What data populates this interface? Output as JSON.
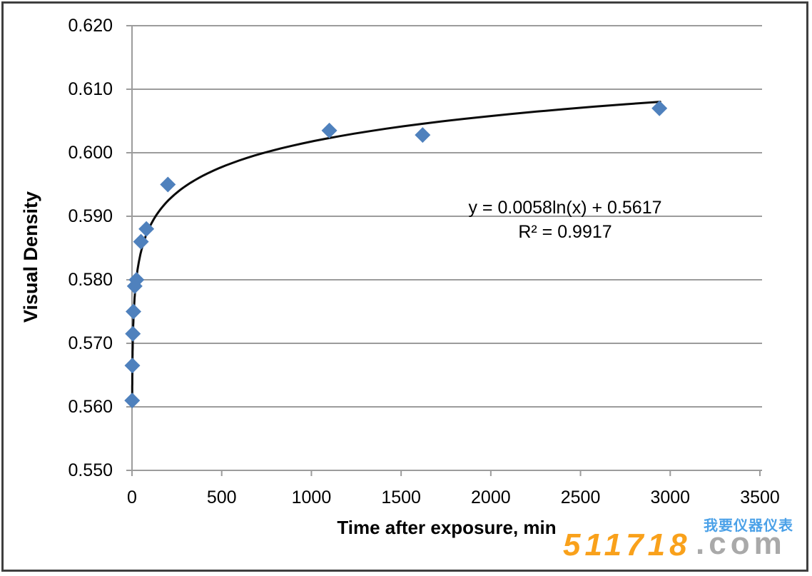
{
  "chart_data": {
    "type": "scatter",
    "title": "",
    "xlabel": "Time after exposure, min",
    "ylabel": "Visual Density",
    "xlim": [
      0,
      3500
    ],
    "ylim": [
      0.55,
      0.62
    ],
    "x_ticks": [
      0,
      500,
      1000,
      1500,
      2000,
      2500,
      3000,
      3500
    ],
    "y_ticks": [
      "0.620",
      "0.610",
      "0.600",
      "0.590",
      "0.580",
      "0.570",
      "0.560",
      "0.550"
    ],
    "grid": true,
    "legend": "none",
    "series": [
      {
        "name": "visual-density-points",
        "marker": "diamond",
        "marker_color": "#4F81BD",
        "x": [
          1,
          2,
          5,
          8,
          15,
          25,
          50,
          80,
          200,
          1100,
          1620,
          2940
        ],
        "y": [
          0.561,
          0.5665,
          0.5715,
          0.575,
          0.579,
          0.58,
          0.586,
          0.588,
          0.595,
          0.6035,
          0.6028,
          0.607
        ]
      }
    ],
    "trendline": {
      "type": "logarithmic",
      "a": 0.0058,
      "b": 0.5617,
      "x_start": 1,
      "x_end": 2944,
      "color": "#0a0a0a",
      "equation_label": "y = 0.0058ln(x) + 0.5617",
      "r2_label": "R² = 0.9917"
    }
  },
  "colors": {
    "gridline": "#9c9c9c",
    "axis_line": "#9c9c9c",
    "text": "#000000",
    "plot_background": "#ffffff",
    "frame_border": "#3f3f3f"
  },
  "watermark": {
    "digits": "511718",
    "suffix": ".com",
    "tagline": "我要仪器仪表",
    "digits_color": "#F9A11B",
    "suffix_color": "#A9A9A9",
    "tagline_color": "#4BA1E8"
  }
}
